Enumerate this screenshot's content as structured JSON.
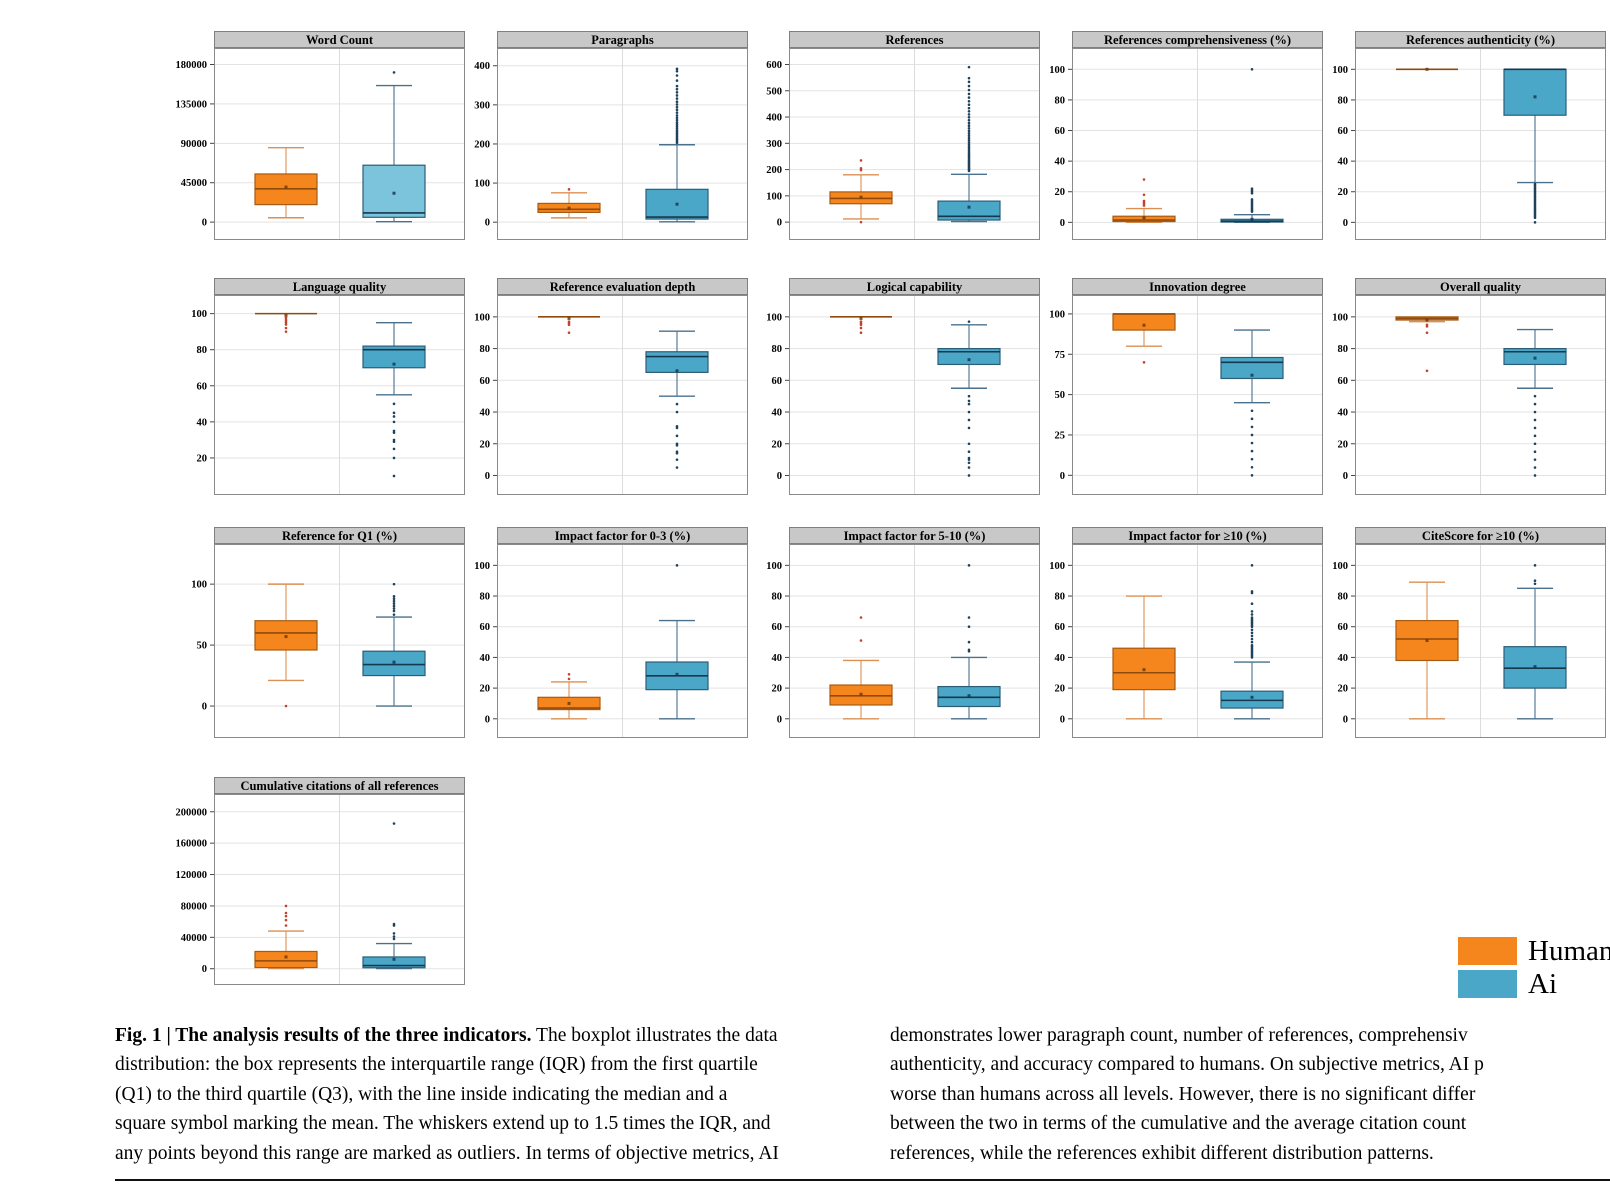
{
  "figure": {
    "legend": {
      "items": [
        {
          "label": "Human",
          "color": "#F5861E"
        },
        {
          "label": "Ai",
          "color": "#4BA7C8"
        }
      ]
    },
    "caption": {
      "left": {
        "lead_bold": "Fig. 1 | The analysis results of the three indicators.",
        "lead_rest": " The boxplot illustrates the data",
        "lines": [
          "distribution: the box represents the interquartile range (IQR) from the first quartile",
          "(Q1) to the third quartile (Q3), with the line inside indicating the median and a",
          "square symbol marking the mean. The whiskers extend up to 1.5 times the IQR, and",
          "any points beyond this range are marked as outliers. In terms of objective metrics, AI"
        ]
      },
      "right": {
        "lines": [
          "demonstrates lower paragraph count, number of references, comprehensiv",
          "authenticity, and accuracy compared to humans. On subjective metrics, AI p",
          "worse than humans across all levels. However, there is no significant differ",
          "between the two in terms of the cumulative and the average citation count",
          "references, while the references exhibit different distribution patterns."
        ]
      }
    }
  },
  "chart_data": {
    "type": "boxplot-grid",
    "series_names": [
      "Human",
      "Ai"
    ],
    "legend_position": "bottom-right",
    "grid": "horizontal light gray, center vertical divider per panel",
    "colors": {
      "human": {
        "fill": "#F5861E",
        "edge": "#A85A10",
        "whisker": "#DB8F52",
        "median": "#8F4A0C",
        "mean": "#6E3A08",
        "outlier": "#C0442C"
      },
      "ai": {
        "fill": "#4BA7C8",
        "edge": "#2C5D77",
        "whisker": "#49708C",
        "median": "#16384E",
        "mean": "#16384E",
        "outlier": "#1E425C"
      },
      "header_bg": "#C8C8C8",
      "panel_border": "#8A8A8A",
      "gridline": "#E3E3E3"
    },
    "panels": [
      {
        "title": "Word Count",
        "ylim": [
          -9000,
          192000
        ],
        "yticks": [
          0,
          45000,
          90000,
          135000,
          180000
        ],
        "human": {
          "whisker_low": 5000,
          "q1": 20000,
          "median": 38000,
          "mean": 40000,
          "q3": 55000,
          "whisker_high": 85000,
          "outliers": []
        },
        "ai": {
          "whisker_low": 500,
          "q1": 5500,
          "median": 10500,
          "mean": 33000,
          "q3": 65000,
          "whisker_high": 156000,
          "outliers": [
            171000
          ],
          "fill": "#7CC4DC"
        }
      },
      {
        "title": "Paragraphs",
        "ylim": [
          -20,
          430
        ],
        "yticks": [
          0,
          100,
          200,
          300,
          400
        ],
        "human": {
          "whisker_low": 11,
          "q1": 25,
          "median": 33,
          "mean": 36,
          "q3": 48,
          "whisker_high": 75,
          "outliers": [
            84
          ]
        },
        "ai": {
          "whisker_low": 1,
          "q1": 8,
          "median": 13,
          "mean": 46,
          "q3": 84,
          "whisker_high": 198,
          "outliers": [
            203,
            207,
            211,
            215,
            219,
            223,
            227,
            231,
            235,
            240,
            245,
            250,
            255,
            261,
            267,
            273,
            280,
            287,
            294,
            301,
            308,
            316,
            324,
            332,
            340,
            348,
            362,
            375,
            386,
            392
          ]
        }
      },
      {
        "title": "References",
        "ylim": [
          -30,
          640
        ],
        "yticks": [
          0,
          100,
          200,
          300,
          400,
          500,
          600
        ],
        "human": {
          "whisker_low": 12,
          "q1": 70,
          "median": 90,
          "mean": 95,
          "q3": 115,
          "whisker_high": 180,
          "outliers": [
            0,
            198,
            205,
            235
          ]
        },
        "ai": {
          "whisker_low": 2,
          "q1": 8,
          "median": 22,
          "mean": 57,
          "q3": 80,
          "whisker_high": 182,
          "outliers": [
            195,
            200,
            205,
            210,
            215,
            220,
            225,
            230,
            236,
            242,
            248,
            254,
            260,
            267,
            274,
            281,
            288,
            296,
            304,
            312,
            320,
            329,
            338,
            347,
            357,
            367,
            377,
            388,
            399,
            410,
            422,
            434,
            447,
            460,
            474,
            488,
            503,
            518,
            534,
            548,
            590
          ]
        }
      },
      {
        "title": "References comprehensiveness (%)",
        "ylim": [
          -5,
          110
        ],
        "yticks": [
          0,
          20,
          40,
          60,
          80,
          100
        ],
        "human": {
          "whisker_low": 0,
          "q1": 0.5,
          "median": 1.5,
          "mean": 3,
          "q3": 4,
          "whisker_high": 9,
          "outliers": [
            11,
            12,
            13,
            14,
            18,
            28
          ]
        },
        "ai": {
          "whisker_low": 0,
          "q1": 0.2,
          "median": 0.8,
          "mean": 2,
          "q3": 2,
          "whisker_high": 5,
          "outliers": [
            7,
            8,
            9,
            10,
            11,
            12,
            13,
            14,
            15,
            19,
            20,
            21,
            22,
            100
          ]
        }
      },
      {
        "title": "References authenticity (%)",
        "ylim": [
          -5,
          110
        ],
        "yticks": [
          0,
          20,
          40,
          60,
          80,
          100
        ],
        "human": {
          "whisker_low": 100,
          "q1": 100,
          "median": 100,
          "mean": 100,
          "q3": 100,
          "whisker_high": 100,
          "outliers": []
        },
        "ai": {
          "whisker_low": 26,
          "q1": 70,
          "median": 100,
          "mean": 82,
          "q3": 100,
          "whisker_high": 100,
          "outliers": [
            0,
            3,
            4,
            5,
            6,
            7,
            8,
            9,
            10,
            11,
            12,
            13,
            14,
            15,
            16,
            17,
            18,
            19,
            20,
            21,
            22,
            23,
            24,
            25
          ]
        }
      },
      {
        "title": "Language quality",
        "ylim": [
          5,
          107
        ],
        "yticks": [
          20,
          40,
          60,
          80,
          100
        ],
        "human": {
          "whisker_low": 100,
          "q1": 100,
          "median": 100,
          "mean": 99,
          "q3": 100,
          "whisker_high": 100,
          "outliers": [
            90,
            92,
            94,
            95,
            96,
            97,
            98
          ]
        },
        "ai": {
          "whisker_low": 55,
          "q1": 70,
          "median": 80,
          "mean": 72,
          "q3": 82,
          "whisker_high": 95,
          "outliers": [
            10,
            20,
            25,
            29,
            30,
            34,
            35,
            40,
            43,
            45,
            50
          ]
        }
      },
      {
        "title": "Reference evaluation depth",
        "ylim": [
          -6,
          110
        ],
        "yticks": [
          0,
          20,
          40,
          60,
          80,
          100
        ],
        "human": {
          "whisker_low": 100,
          "q1": 100,
          "median": 100,
          "mean": 99,
          "q3": 100,
          "whisker_high": 100,
          "outliers": [
            90,
            95,
            96,
            97
          ]
        },
        "ai": {
          "whisker_low": 50,
          "q1": 65,
          "median": 75,
          "mean": 66,
          "q3": 78,
          "whisker_high": 91,
          "outliers": [
            5,
            10,
            14,
            15,
            19,
            20,
            25,
            30,
            31,
            40,
            45
          ]
        }
      },
      {
        "title": "Logical capability",
        "ylim": [
          -6,
          110
        ],
        "yticks": [
          0,
          20,
          40,
          60,
          80,
          100
        ],
        "human": {
          "whisker_low": 100,
          "q1": 100,
          "median": 100,
          "mean": 99,
          "q3": 100,
          "whisker_high": 100,
          "outliers": [
            90,
            93,
            95,
            96,
            97
          ]
        },
        "ai": {
          "whisker_low": 55,
          "q1": 70,
          "median": 78,
          "mean": 73,
          "q3": 80,
          "whisker_high": 95,
          "outliers": [
            0,
            5,
            8,
            10,
            11,
            15,
            20,
            30,
            35,
            40,
            45,
            47,
            50,
            97
          ]
        }
      },
      {
        "title": "Innovation degree",
        "ylim": [
          -6,
          108
        ],
        "yticks": [
          0,
          25,
          50,
          75,
          100
        ],
        "human": {
          "whisker_low": 80,
          "q1": 90,
          "median": 100,
          "mean": 93,
          "q3": 100,
          "whisker_high": 100,
          "outliers": [
            70
          ]
        },
        "ai": {
          "whisker_low": 45,
          "q1": 60,
          "median": 70,
          "mean": 62,
          "q3": 73,
          "whisker_high": 90,
          "outliers": [
            0,
            5,
            10,
            15,
            20,
            25,
            30,
            35,
            40
          ]
        }
      },
      {
        "title": "Overall quality",
        "ylim": [
          -6,
          110
        ],
        "yticks": [
          0,
          20,
          40,
          60,
          80,
          100
        ],
        "human": {
          "whisker_low": 97,
          "q1": 98,
          "median": 99,
          "mean": 98,
          "q3": 100,
          "whisker_high": 100,
          "outliers": [
            66,
            90,
            94,
            95
          ]
        },
        "ai": {
          "whisker_low": 55,
          "q1": 70,
          "median": 78,
          "mean": 74,
          "q3": 80,
          "whisker_high": 92,
          "outliers": [
            0,
            5,
            10,
            15,
            20,
            25,
            30,
            35,
            40,
            45,
            50
          ]
        }
      },
      {
        "title": "Reference for Q1 (%)",
        "ylim": [
          -18,
          128
        ],
        "yticks": [
          0,
          50,
          100
        ],
        "human": {
          "whisker_low": 21,
          "q1": 46,
          "median": 60,
          "mean": 57,
          "q3": 70,
          "whisker_high": 100,
          "outliers": [
            0
          ]
        },
        "ai": {
          "whisker_low": 0,
          "q1": 25,
          "median": 34,
          "mean": 36,
          "q3": 45,
          "whisker_high": 73,
          "outliers": [
            75,
            78,
            80,
            82,
            84,
            86,
            88,
            90,
            100
          ]
        }
      },
      {
        "title": "Impact factor for 0-3 (%)",
        "ylim": [
          -6,
          110
        ],
        "yticks": [
          0,
          20,
          40,
          60,
          80,
          100
        ],
        "human": {
          "whisker_low": 0,
          "q1": 6,
          "median": 7,
          "mean": 10,
          "q3": 14,
          "whisker_high": 24,
          "outliers": [
            26,
            29
          ]
        },
        "ai": {
          "whisker_low": 0,
          "q1": 19,
          "median": 28,
          "mean": 29,
          "q3": 37,
          "whisker_high": 64,
          "outliers": [
            100
          ]
        }
      },
      {
        "title": "Impact factor for 5-10 (%)",
        "ylim": [
          -6,
          110
        ],
        "yticks": [
          0,
          20,
          40,
          60,
          80,
          100
        ],
        "human": {
          "whisker_low": 0,
          "q1": 9,
          "median": 15,
          "mean": 16,
          "q3": 22,
          "whisker_high": 38,
          "outliers": [
            51,
            66
          ]
        },
        "ai": {
          "whisker_low": 0,
          "q1": 8,
          "median": 14,
          "mean": 15,
          "q3": 21,
          "whisker_high": 40,
          "outliers": [
            44,
            45,
            50,
            60,
            66,
            100
          ]
        }
      },
      {
        "title": "Impact factor for ≥10 (%)",
        "ylim": [
          -6,
          110
        ],
        "yticks": [
          0,
          20,
          40,
          60,
          80,
          100
        ],
        "human": {
          "whisker_low": 0,
          "q1": 19,
          "median": 30,
          "mean": 32,
          "q3": 46,
          "whisker_high": 80,
          "outliers": []
        },
        "ai": {
          "whisker_low": 0,
          "q1": 7,
          "median": 12,
          "mean": 14,
          "q3": 18,
          "whisker_high": 37,
          "outliers": [
            40,
            41,
            42,
            43,
            44,
            45,
            46,
            47,
            48,
            50,
            52,
            54,
            56,
            58,
            60,
            61,
            62,
            63,
            64,
            65,
            66,
            68,
            70,
            75,
            82,
            83,
            100
          ]
        }
      },
      {
        "title": "CiteScore for ≥10 (%)",
        "ylim": [
          -6,
          110
        ],
        "yticks": [
          0,
          20,
          40,
          60,
          80,
          100
        ],
        "human": {
          "whisker_low": 0,
          "q1": 38,
          "median": 52,
          "mean": 51,
          "q3": 64,
          "whisker_high": 89,
          "outliers": []
        },
        "ai": {
          "whisker_low": 0,
          "q1": 20,
          "median": 33,
          "mean": 34,
          "q3": 47,
          "whisker_high": 85,
          "outliers": [
            88,
            90,
            100
          ]
        }
      },
      {
        "title": "Cumulative citations of all references",
        "ylim": [
          -8000,
          215000
        ],
        "yticks": [
          0,
          40000,
          80000,
          120000,
          160000,
          200000
        ],
        "human": {
          "whisker_low": 200,
          "q1": 1500,
          "median": 10000,
          "mean": 15000,
          "q3": 22000,
          "whisker_high": 48000,
          "outliers": [
            55000,
            62000,
            67000,
            71000,
            80000
          ]
        },
        "ai": {
          "whisker_low": 200,
          "q1": 1200,
          "median": 4000,
          "mean": 12000,
          "q3": 15000,
          "whisker_high": 32000,
          "outliers": [
            38000,
            41000,
            45000,
            55000,
            57000,
            185000
          ]
        }
      }
    ]
  }
}
